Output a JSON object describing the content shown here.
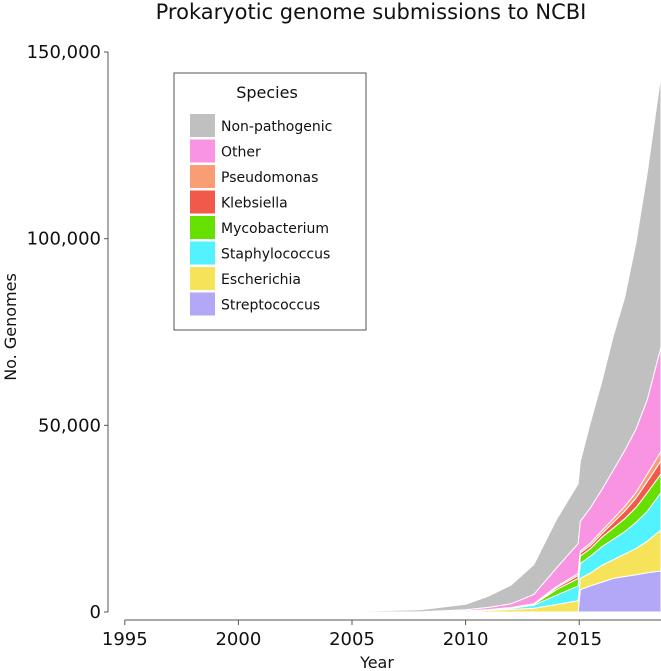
{
  "chart_data": {
    "type": "area",
    "stacked": true,
    "title": "Prokaryotic genome submissions to NCBI",
    "xlabel": "Year",
    "ylabel": "No. Genomes",
    "xlim": [
      1995,
      2018.6
    ],
    "ylim": [
      0,
      150000
    ],
    "x_ticks": [
      1995,
      2000,
      2005,
      2010,
      2015
    ],
    "x_tick_labels": [
      "1995",
      "2000",
      "2005",
      "2010",
      "2015"
    ],
    "y_ticks": [
      0,
      50000,
      100000,
      150000
    ],
    "y_tick_labels": [
      "0",
      "50,000",
      "100,000",
      "150,000"
    ],
    "grid": false,
    "legend": {
      "title": "Species",
      "placement": "top-left",
      "entries": [
        "Non-pathogenic",
        "Other",
        "Pseudomonas",
        "Klebsiella",
        "Mycobacterium",
        "Staphylococcus",
        "Escherichia",
        "Streptococcus"
      ]
    },
    "x": [
      1995.5,
      2000,
      2005,
      2008,
      2010,
      2011,
      2012,
      2013,
      2014,
      2014.95,
      2015.05,
      2015.5,
      2016,
      2016.5,
      2017,
      2017.5,
      2018,
      2018.6
    ],
    "series": [
      {
        "name": "Streptococcus",
        "color": "#b3a7f7",
        "values": [
          0,
          0,
          0,
          0,
          0,
          0,
          0,
          0,
          0,
          0,
          6000,
          7000,
          8000,
          9000,
          9500,
          10000,
          10500,
          11000
        ]
      },
      {
        "name": "Escherichia",
        "color": "#f7e35a",
        "values": [
          0,
          0,
          0,
          20,
          200,
          400,
          700,
          1000,
          2000,
          3000,
          3000,
          3500,
          4500,
          5000,
          6000,
          7000,
          8500,
          11000
        ]
      },
      {
        "name": "Staphylococcus",
        "color": "#52f3ff",
        "values": [
          0,
          0,
          0,
          10,
          80,
          150,
          300,
          800,
          2500,
          4000,
          4000,
          4500,
          5000,
          5500,
          6000,
          7000,
          8000,
          10000
        ]
      },
      {
        "name": "Mycobacterium",
        "color": "#66e000",
        "values": [
          0,
          0,
          0,
          0,
          20,
          50,
          100,
          200,
          1500,
          2000,
          2000,
          2000,
          2500,
          3000,
          3500,
          4000,
          5000,
          5000
        ]
      },
      {
        "name": "Klebsiella",
        "color": "#f05a4a",
        "values": [
          0,
          0,
          0,
          0,
          0,
          20,
          50,
          100,
          500,
          800,
          800,
          900,
          1000,
          1500,
          2000,
          2500,
          3000,
          3500
        ]
      },
      {
        "name": "Pseudomonas",
        "color": "#f99d74",
        "values": [
          0,
          0,
          0,
          0,
          0,
          20,
          50,
          100,
          300,
          500,
          500,
          600,
          800,
          1000,
          1200,
          1500,
          2000,
          2500
        ]
      },
      {
        "name": "Other",
        "color": "#f994e2",
        "values": [
          0,
          0,
          0,
          50,
          300,
          600,
          1000,
          2500,
          5000,
          8000,
          8000,
          9500,
          11000,
          13000,
          15000,
          17000,
          20000,
          28000
        ]
      },
      {
        "name": "Non-pathogenic",
        "color": "#c0c0c0",
        "values": [
          0,
          20,
          200,
          500,
          1500,
          3000,
          5000,
          8000,
          13000,
          16000,
          16000,
          23000,
          29000,
          36000,
          41000,
          50000,
          61000,
          73000
        ]
      }
    ]
  }
}
